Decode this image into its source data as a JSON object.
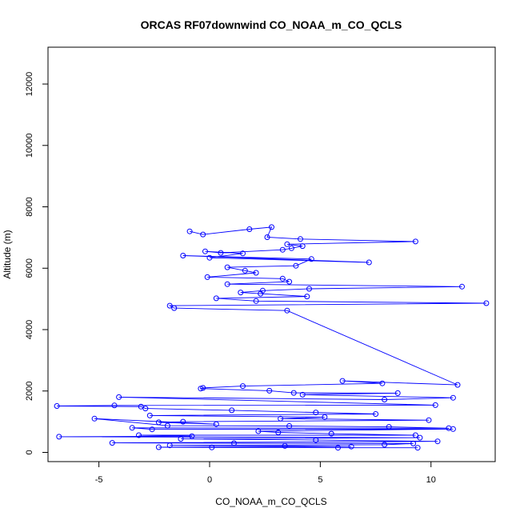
{
  "chart_data": {
    "type": "line",
    "title": "ORCAS RF07downwind CO_NOAA_m_CO_QCLS",
    "xlabel": "CO_NOAA_m_CO_QCLS",
    "ylabel": "Altitude (m)",
    "xlim": [
      -7.3,
      12.9
    ],
    "ylim": [
      -300,
      13200
    ],
    "xticks": [
      -5,
      0,
      5,
      10
    ],
    "yticks": [
      0,
      2000,
      4000,
      6000,
      8000,
      10000,
      12000
    ],
    "grid": false,
    "markers": "open-circle",
    "series_color": "#0000ff",
    "series": [
      {
        "x": [
          -0.9,
          -0.3,
          1.8,
          2.8,
          2.6,
          4.1,
          9.3,
          3.5,
          4.2,
          3.7,
          3.3,
          0.5,
          -0.2,
          1.5,
          0,
          7.2,
          -1.2,
          4.6,
          3.9,
          0.8,
          1.6,
          2.1,
          -0.1,
          3.3,
          3.6,
          0.8,
          11.4,
          4.5,
          2.4,
          1.4,
          2.3,
          4.4,
          0.3,
          2.1,
          12.5,
          -1.8,
          -1.6,
          3.5,
          11.2,
          6,
          7.8,
          1.5,
          -0.3,
          -0.4,
          2.7,
          3.8,
          8.5,
          4.2,
          11,
          7.9,
          -4.1,
          10.2,
          -4.3,
          -6.9,
          -3.1,
          -2.9,
          1,
          4.8,
          7.5,
          -2.7,
          5.2,
          3.2,
          9.9,
          -1.2,
          -2.3,
          0.3,
          -5.2,
          -1.9,
          3.6,
          8.1,
          10.8,
          -3.5,
          -2.6,
          11,
          2.2,
          3.1,
          5.5,
          9.3,
          -3.2,
          -0.8,
          -6.8,
          9.5,
          -1.3,
          4.8,
          10.3,
          -4.4,
          1.1,
          9.2,
          7.9,
          -1.8,
          3.4,
          6.4,
          -2.3,
          0.1,
          5.8,
          9.4
        ],
        "y": [
          7200,
          7100,
          7270,
          7340,
          7010,
          6950,
          6870,
          6780,
          6720,
          6650,
          6600,
          6500,
          6550,
          6480,
          6340,
          6190,
          6410,
          6300,
          6080,
          6030,
          5920,
          5850,
          5710,
          5660,
          5560,
          5480,
          5400,
          5330,
          5270,
          5210,
          5170,
          5080,
          5020,
          4930,
          4860,
          4780,
          4700,
          4620,
          2200,
          2330,
          2250,
          2160,
          2100,
          2080,
          2010,
          1940,
          1930,
          1880,
          1780,
          1720,
          1800,
          1540,
          1530,
          1510,
          1490,
          1430,
          1370,
          1300,
          1250,
          1200,
          1150,
          1100,
          1050,
          1000,
          980,
          920,
          1100,
          870,
          860,
          830,
          790,
          800,
          750,
          760,
          690,
          650,
          610,
          560,
          560,
          530,
          510,
          480,
          440,
          400,
          360,
          310,
          300,
          290,
          250,
          230,
          210,
          190,
          170,
          160,
          150,
          150
        ]
      }
    ]
  }
}
